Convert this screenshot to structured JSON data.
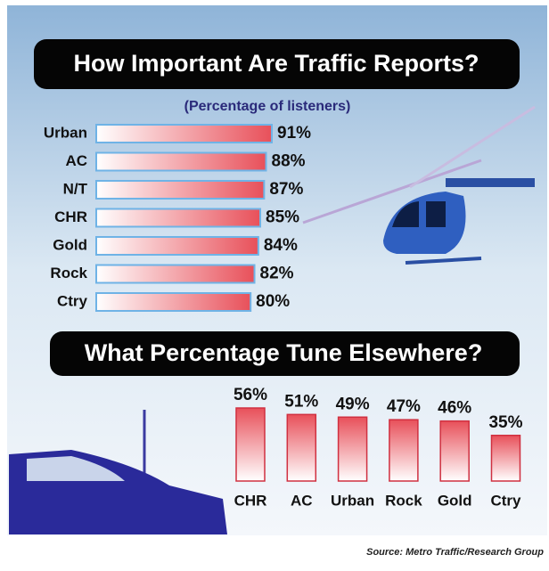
{
  "chart_data": [
    {
      "type": "hbar",
      "title": "How Important Are Traffic Reports?",
      "subtitle": "(Percentage of listeners)",
      "categories": [
        "Urban",
        "AC",
        "N/T",
        "CHR",
        "Gold",
        "Rock",
        "Ctry"
      ],
      "values": [
        91,
        88,
        87,
        85,
        84,
        82,
        80
      ],
      "value_labels": [
        "91%",
        "88%",
        "87%",
        "85%",
        "84%",
        "82%",
        "80%"
      ],
      "color": "#e8505a"
    },
    {
      "type": "bar",
      "title": "What Percentage Tune Elsewhere?",
      "categories": [
        "CHR",
        "AC",
        "Urban",
        "Rock",
        "Gold",
        "Ctry"
      ],
      "values": [
        56,
        51,
        49,
        47,
        46,
        35
      ],
      "value_labels": [
        "56%",
        "51%",
        "49%",
        "47%",
        "46%",
        "35%"
      ],
      "color": "#e8505a"
    }
  ],
  "source": "Source: Metro Traffic/Research Group"
}
